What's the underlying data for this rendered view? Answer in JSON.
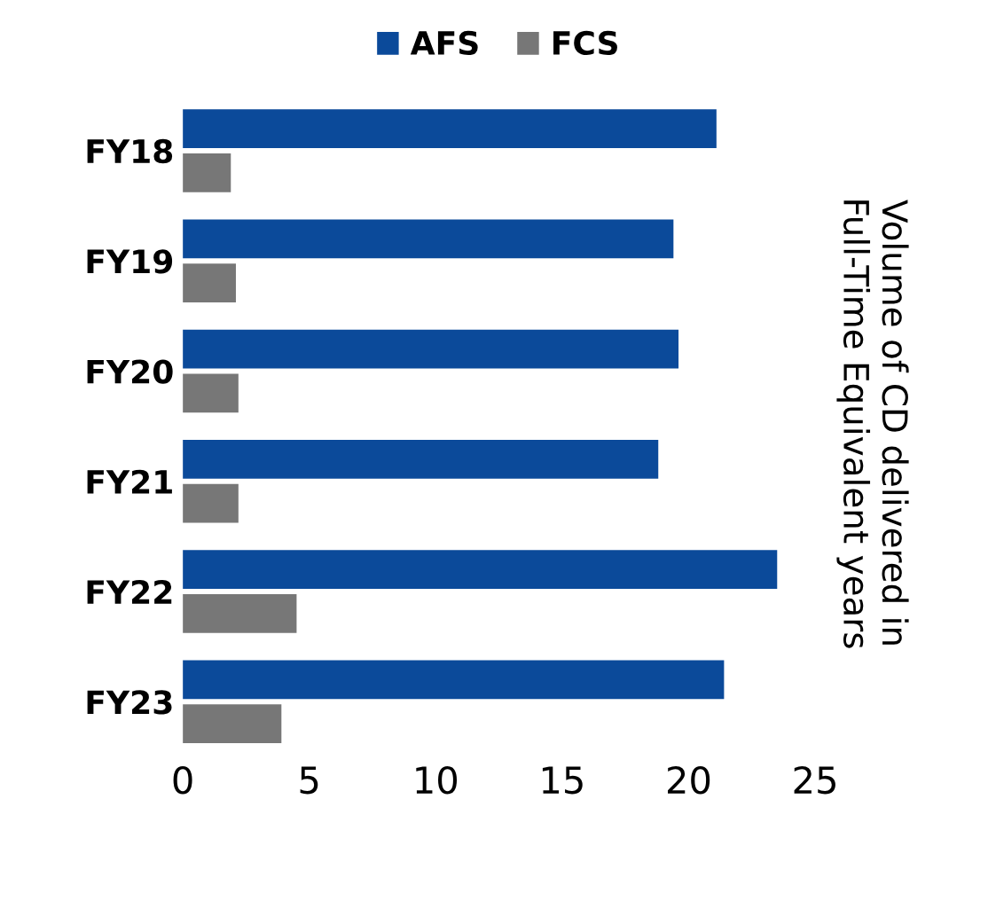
{
  "chart_data": {
    "type": "bar",
    "orientation": "horizontal",
    "categories": [
      "FY18",
      "FY19",
      "FY20",
      "FY21",
      "FY22",
      "FY23"
    ],
    "series": [
      {
        "name": "AFS",
        "color": "#0b4a9a",
        "values": [
          21.1,
          19.4,
          19.6,
          18.8,
          23.5,
          21.4
        ]
      },
      {
        "name": "FCS",
        "color": "#777777",
        "values": [
          1.9,
          2.1,
          2.2,
          2.2,
          4.5,
          3.9
        ]
      }
    ],
    "xlim": [
      0,
      25
    ],
    "xticks": [
      0,
      5,
      10,
      15,
      20,
      25
    ],
    "ylabel": "Volume of CD delivered in\nFull-Time Equivalent years",
    "legend": "top",
    "grid": false
  }
}
